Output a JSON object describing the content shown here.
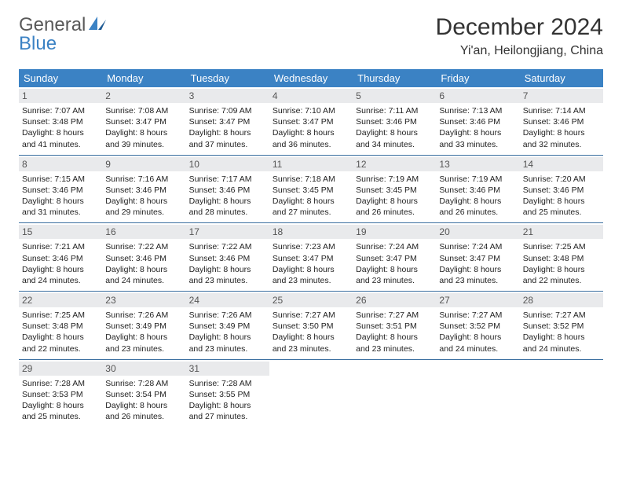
{
  "logo": {
    "text1": "General",
    "text2": "Blue"
  },
  "title": "December 2024",
  "location": "Yi'an, Heilongjiang, China",
  "colors": {
    "header_bg": "#3b82c4",
    "header_text": "#ffffff",
    "daynum_bg": "#e9eaec",
    "week_border": "#3b6fa0",
    "logo_gray": "#595959",
    "logo_blue": "#3b82c4"
  },
  "weekdays": [
    "Sunday",
    "Monday",
    "Tuesday",
    "Wednesday",
    "Thursday",
    "Friday",
    "Saturday"
  ],
  "days": [
    {
      "n": "1",
      "sunrise": "7:07 AM",
      "sunset": "3:48 PM",
      "daylight": "8 hours and 41 minutes."
    },
    {
      "n": "2",
      "sunrise": "7:08 AM",
      "sunset": "3:47 PM",
      "daylight": "8 hours and 39 minutes."
    },
    {
      "n": "3",
      "sunrise": "7:09 AM",
      "sunset": "3:47 PM",
      "daylight": "8 hours and 37 minutes."
    },
    {
      "n": "4",
      "sunrise": "7:10 AM",
      "sunset": "3:47 PM",
      "daylight": "8 hours and 36 minutes."
    },
    {
      "n": "5",
      "sunrise": "7:11 AM",
      "sunset": "3:46 PM",
      "daylight": "8 hours and 34 minutes."
    },
    {
      "n": "6",
      "sunrise": "7:13 AM",
      "sunset": "3:46 PM",
      "daylight": "8 hours and 33 minutes."
    },
    {
      "n": "7",
      "sunrise": "7:14 AM",
      "sunset": "3:46 PM",
      "daylight": "8 hours and 32 minutes."
    },
    {
      "n": "8",
      "sunrise": "7:15 AM",
      "sunset": "3:46 PM",
      "daylight": "8 hours and 31 minutes."
    },
    {
      "n": "9",
      "sunrise": "7:16 AM",
      "sunset": "3:46 PM",
      "daylight": "8 hours and 29 minutes."
    },
    {
      "n": "10",
      "sunrise": "7:17 AM",
      "sunset": "3:46 PM",
      "daylight": "8 hours and 28 minutes."
    },
    {
      "n": "11",
      "sunrise": "7:18 AM",
      "sunset": "3:45 PM",
      "daylight": "8 hours and 27 minutes."
    },
    {
      "n": "12",
      "sunrise": "7:19 AM",
      "sunset": "3:45 PM",
      "daylight": "8 hours and 26 minutes."
    },
    {
      "n": "13",
      "sunrise": "7:19 AM",
      "sunset": "3:46 PM",
      "daylight": "8 hours and 26 minutes."
    },
    {
      "n": "14",
      "sunrise": "7:20 AM",
      "sunset": "3:46 PM",
      "daylight": "8 hours and 25 minutes."
    },
    {
      "n": "15",
      "sunrise": "7:21 AM",
      "sunset": "3:46 PM",
      "daylight": "8 hours and 24 minutes."
    },
    {
      "n": "16",
      "sunrise": "7:22 AM",
      "sunset": "3:46 PM",
      "daylight": "8 hours and 24 minutes."
    },
    {
      "n": "17",
      "sunrise": "7:22 AM",
      "sunset": "3:46 PM",
      "daylight": "8 hours and 23 minutes."
    },
    {
      "n": "18",
      "sunrise": "7:23 AM",
      "sunset": "3:47 PM",
      "daylight": "8 hours and 23 minutes."
    },
    {
      "n": "19",
      "sunrise": "7:24 AM",
      "sunset": "3:47 PM",
      "daylight": "8 hours and 23 minutes."
    },
    {
      "n": "20",
      "sunrise": "7:24 AM",
      "sunset": "3:47 PM",
      "daylight": "8 hours and 23 minutes."
    },
    {
      "n": "21",
      "sunrise": "7:25 AM",
      "sunset": "3:48 PM",
      "daylight": "8 hours and 22 minutes."
    },
    {
      "n": "22",
      "sunrise": "7:25 AM",
      "sunset": "3:48 PM",
      "daylight": "8 hours and 22 minutes."
    },
    {
      "n": "23",
      "sunrise": "7:26 AM",
      "sunset": "3:49 PM",
      "daylight": "8 hours and 23 minutes."
    },
    {
      "n": "24",
      "sunrise": "7:26 AM",
      "sunset": "3:49 PM",
      "daylight": "8 hours and 23 minutes."
    },
    {
      "n": "25",
      "sunrise": "7:27 AM",
      "sunset": "3:50 PM",
      "daylight": "8 hours and 23 minutes."
    },
    {
      "n": "26",
      "sunrise": "7:27 AM",
      "sunset": "3:51 PM",
      "daylight": "8 hours and 23 minutes."
    },
    {
      "n": "27",
      "sunrise": "7:27 AM",
      "sunset": "3:52 PM",
      "daylight": "8 hours and 24 minutes."
    },
    {
      "n": "28",
      "sunrise": "7:27 AM",
      "sunset": "3:52 PM",
      "daylight": "8 hours and 24 minutes."
    },
    {
      "n": "29",
      "sunrise": "7:28 AM",
      "sunset": "3:53 PM",
      "daylight": "8 hours and 25 minutes."
    },
    {
      "n": "30",
      "sunrise": "7:28 AM",
      "sunset": "3:54 PM",
      "daylight": "8 hours and 26 minutes."
    },
    {
      "n": "31",
      "sunrise": "7:28 AM",
      "sunset": "3:55 PM",
      "daylight": "8 hours and 27 minutes."
    }
  ],
  "labels": {
    "sunrise": "Sunrise:",
    "sunset": "Sunset:",
    "daylight": "Daylight:"
  }
}
